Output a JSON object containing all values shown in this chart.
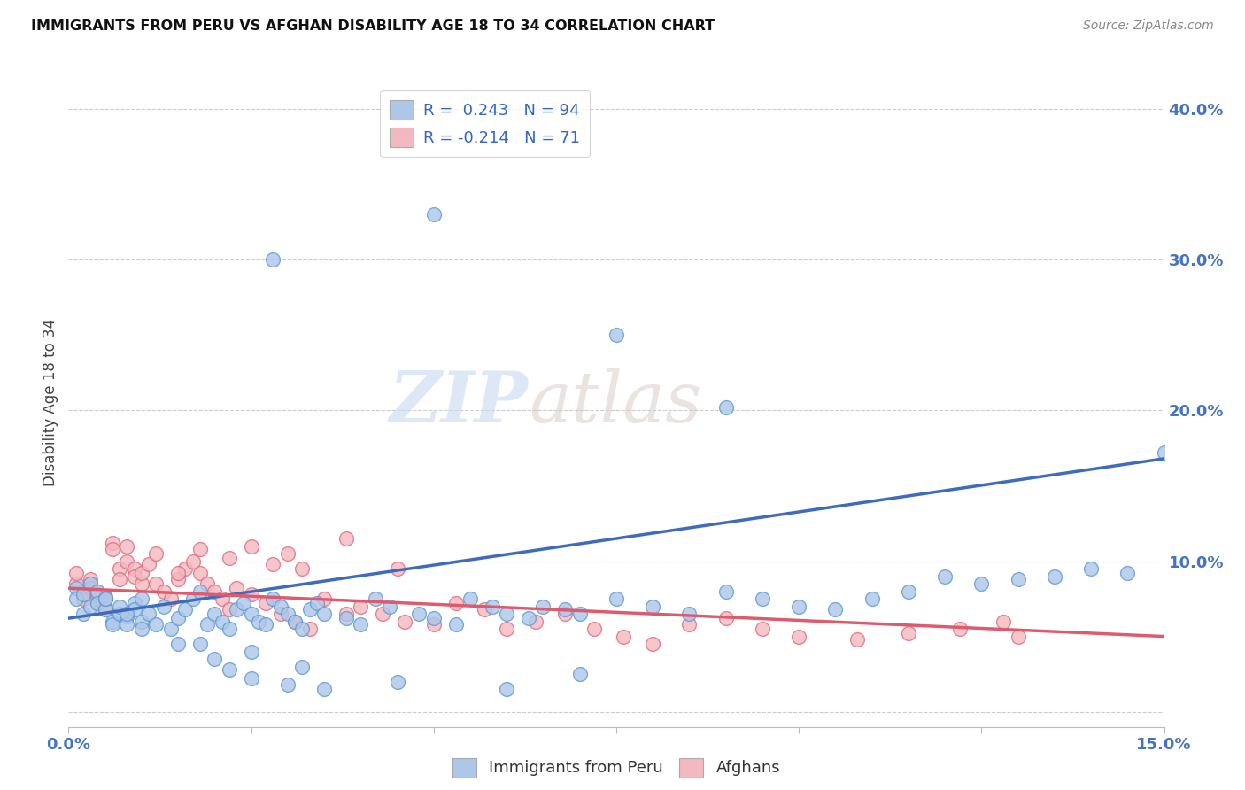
{
  "title": "IMMIGRANTS FROM PERU VS AFGHAN DISABILITY AGE 18 TO 34 CORRELATION CHART",
  "source": "Source: ZipAtlas.com",
  "ylabel": "Disability Age 18 to 34",
  "xlim": [
    0.0,
    0.15
  ],
  "ylim": [
    -0.01,
    0.42
  ],
  "grid_color": "#cccccc",
  "background_color": "#ffffff",
  "peru_color": "#aec6e8",
  "peru_edge_color": "#5b9bd5",
  "afghan_color": "#f4b8c1",
  "afghan_edge_color": "#e06c7d",
  "peru_R": 0.243,
  "peru_N": 94,
  "afghan_R": -0.214,
  "afghan_N": 71,
  "peru_line_color": "#3f6bbf",
  "afghan_line_color": "#e05a6e",
  "legend_label_peru": "Immigrants from Peru",
  "legend_label_afghan": "Afghans",
  "watermark_zip": "ZIP",
  "watermark_atlas": "atlas",
  "peru_scatter_x": [
    0.001,
    0.001,
    0.002,
    0.002,
    0.003,
    0.003,
    0.004,
    0.004,
    0.005,
    0.005,
    0.006,
    0.006,
    0.007,
    0.007,
    0.008,
    0.008,
    0.009,
    0.009,
    0.01,
    0.01,
    0.011,
    0.012,
    0.013,
    0.014,
    0.015,
    0.016,
    0.017,
    0.018,
    0.019,
    0.02,
    0.021,
    0.022,
    0.023,
    0.024,
    0.025,
    0.026,
    0.027,
    0.028,
    0.029,
    0.03,
    0.031,
    0.032,
    0.033,
    0.034,
    0.035,
    0.038,
    0.04,
    0.042,
    0.044,
    0.048,
    0.05,
    0.053,
    0.055,
    0.058,
    0.06,
    0.063,
    0.065,
    0.068,
    0.07,
    0.075,
    0.08,
    0.085,
    0.09,
    0.095,
    0.1,
    0.105,
    0.11,
    0.115,
    0.12,
    0.125,
    0.13,
    0.135,
    0.14,
    0.145,
    0.15,
    0.028,
    0.05,
    0.075,
    0.09,
    0.025,
    0.032,
    0.045,
    0.06,
    0.07,
    0.005,
    0.008,
    0.01,
    0.015,
    0.018,
    0.02,
    0.022,
    0.025,
    0.03,
    0.035
  ],
  "peru_scatter_y": [
    0.082,
    0.075,
    0.078,
    0.065,
    0.07,
    0.085,
    0.08,
    0.072,
    0.068,
    0.075,
    0.06,
    0.058,
    0.065,
    0.07,
    0.063,
    0.058,
    0.072,
    0.068,
    0.075,
    0.06,
    0.065,
    0.058,
    0.07,
    0.055,
    0.062,
    0.068,
    0.075,
    0.08,
    0.058,
    0.065,
    0.06,
    0.055,
    0.068,
    0.072,
    0.065,
    0.06,
    0.058,
    0.075,
    0.07,
    0.065,
    0.06,
    0.055,
    0.068,
    0.072,
    0.065,
    0.062,
    0.058,
    0.075,
    0.07,
    0.065,
    0.062,
    0.058,
    0.075,
    0.07,
    0.065,
    0.062,
    0.07,
    0.068,
    0.065,
    0.075,
    0.07,
    0.065,
    0.08,
    0.075,
    0.07,
    0.068,
    0.075,
    0.08,
    0.09,
    0.085,
    0.088,
    0.09,
    0.095,
    0.092,
    0.172,
    0.3,
    0.33,
    0.25,
    0.202,
    0.04,
    0.03,
    0.02,
    0.015,
    0.025,
    0.075,
    0.065,
    0.055,
    0.045,
    0.045,
    0.035,
    0.028,
    0.022,
    0.018,
    0.015
  ],
  "afghan_scatter_x": [
    0.001,
    0.001,
    0.002,
    0.002,
    0.003,
    0.003,
    0.004,
    0.004,
    0.005,
    0.005,
    0.006,
    0.006,
    0.007,
    0.007,
    0.008,
    0.008,
    0.009,
    0.009,
    0.01,
    0.01,
    0.011,
    0.012,
    0.013,
    0.014,
    0.015,
    0.016,
    0.017,
    0.018,
    0.019,
    0.02,
    0.021,
    0.022,
    0.023,
    0.025,
    0.027,
    0.029,
    0.031,
    0.033,
    0.035,
    0.038,
    0.04,
    0.043,
    0.046,
    0.05,
    0.053,
    0.057,
    0.06,
    0.064,
    0.068,
    0.072,
    0.076,
    0.08,
    0.085,
    0.09,
    0.095,
    0.1,
    0.108,
    0.115,
    0.122,
    0.13,
    0.038,
    0.025,
    0.018,
    0.012,
    0.03,
    0.045,
    0.022,
    0.028,
    0.032,
    0.015,
    0.128
  ],
  "afghan_scatter_y": [
    0.085,
    0.092,
    0.08,
    0.075,
    0.088,
    0.082,
    0.078,
    0.072,
    0.068,
    0.076,
    0.112,
    0.108,
    0.095,
    0.088,
    0.11,
    0.1,
    0.095,
    0.09,
    0.085,
    0.092,
    0.098,
    0.085,
    0.08,
    0.075,
    0.088,
    0.095,
    0.1,
    0.092,
    0.085,
    0.08,
    0.075,
    0.068,
    0.082,
    0.078,
    0.072,
    0.065,
    0.06,
    0.055,
    0.075,
    0.065,
    0.07,
    0.065,
    0.06,
    0.058,
    0.072,
    0.068,
    0.055,
    0.06,
    0.065,
    0.055,
    0.05,
    0.045,
    0.058,
    0.062,
    0.055,
    0.05,
    0.048,
    0.052,
    0.055,
    0.05,
    0.115,
    0.11,
    0.108,
    0.105,
    0.105,
    0.095,
    0.102,
    0.098,
    0.095,
    0.092,
    0.06
  ],
  "peru_line_x": [
    0.0,
    0.15
  ],
  "peru_line_y": [
    0.062,
    0.168
  ],
  "afghan_line_x": [
    0.0,
    0.15
  ],
  "afghan_line_y": [
    0.082,
    0.05
  ]
}
